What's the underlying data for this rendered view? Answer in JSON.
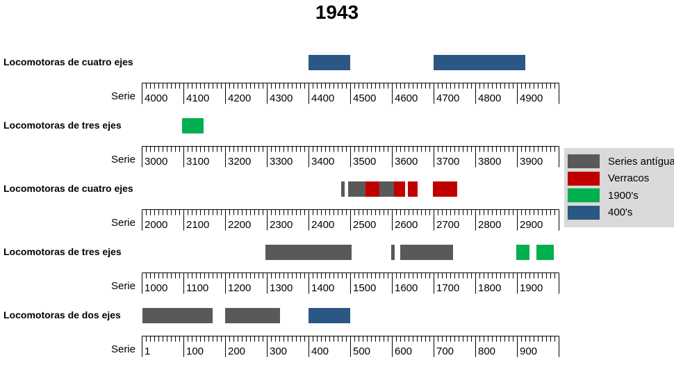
{
  "chart_data": {
    "type": "bar",
    "subtype": "horizontal-range-timeline",
    "title": "1943",
    "axis_title": "Serie",
    "grid": false,
    "legend_position": "right",
    "legend_background": "#D9D9D9",
    "legend": [
      {
        "label": "Series antíguas",
        "color": "#595959"
      },
      {
        "label": "Verracos",
        "color": "#C00000"
      },
      {
        "label": "1900's",
        "color": "#00B050"
      },
      {
        "label": "400's",
        "color": "#2A5783"
      }
    ],
    "rows": [
      {
        "label": "Locomotoras de cuatro ejes",
        "axis_min": 4000,
        "axis_max": 5000,
        "tick_step": 100,
        "tick_labels": [
          "4000",
          "4100",
          "4200",
          "4300",
          "4400",
          "4500",
          "4600",
          "4700",
          "4800",
          "4900"
        ],
        "bars": [
          {
            "series": "400's",
            "from": 4400,
            "to": 4500
          },
          {
            "series": "400's",
            "from": 4700,
            "to": 4920
          }
        ]
      },
      {
        "label": "Locomotoras de tres ejes",
        "axis_min": 3000,
        "axis_max": 4000,
        "tick_step": 100,
        "tick_labels": [
          "3000",
          "3100",
          "3200",
          "3300",
          "3400",
          "3500",
          "3600",
          "3700",
          "3800",
          "3900"
        ],
        "bars": [
          {
            "series": "1900's",
            "from": 3097,
            "to": 3148
          }
        ]
      },
      {
        "label": "Locomotoras de cuatro ejes",
        "axis_min": 2000,
        "axis_max": 3000,
        "tick_step": 100,
        "tick_labels": [
          "2000",
          "2100",
          "2200",
          "2300",
          "2400",
          "2500",
          "2600",
          "2700",
          "2800",
          "2900"
        ],
        "bars": [
          {
            "series": "Series antíguas",
            "from": 2478,
            "to": 2486
          },
          {
            "series": "Series antíguas",
            "from": 2495,
            "to": 2537
          },
          {
            "series": "Verracos",
            "from": 2537,
            "to": 2570
          },
          {
            "series": "Series antíguas",
            "from": 2570,
            "to": 2605
          },
          {
            "series": "Verracos",
            "from": 2605,
            "to": 2632
          },
          {
            "series": "Verracos",
            "from": 2638,
            "to": 2662
          },
          {
            "series": "Verracos",
            "from": 2698,
            "to": 2757
          }
        ]
      },
      {
        "label": "Locomotoras de tres ejes",
        "axis_min": 1000,
        "axis_max": 2000,
        "tick_step": 100,
        "tick_labels": [
          "1000",
          "1100",
          "1200",
          "1300",
          "1400",
          "1500",
          "1600",
          "1700",
          "1800",
          "1900"
        ],
        "bars": [
          {
            "series": "Series antíguas",
            "from": 1297,
            "to": 1503
          },
          {
            "series": "Series antíguas",
            "from": 1598,
            "to": 1607
          },
          {
            "series": "Series antíguas",
            "from": 1620,
            "to": 1746
          },
          {
            "series": "1900's",
            "from": 1899,
            "to": 1930
          },
          {
            "series": "1900's",
            "from": 1947,
            "to": 1989
          }
        ]
      },
      {
        "label": "Locomotoras de dos ejes",
        "axis_min": 0,
        "axis_max": 1000,
        "tick_step": 100,
        "tick_labels": [
          "1",
          "100",
          "200",
          "300",
          "400",
          "500",
          "600",
          "700",
          "800",
          "900"
        ],
        "bars": [
          {
            "series": "Series antíguas",
            "from": 1,
            "to": 170
          },
          {
            "series": "Series antíguas",
            "from": 200,
            "to": 331
          },
          {
            "series": "400's",
            "from": 400,
            "to": 500
          }
        ]
      }
    ]
  }
}
